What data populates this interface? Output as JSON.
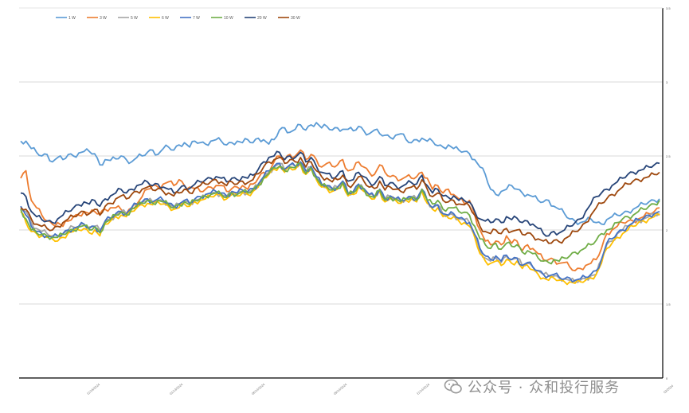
{
  "chart_data": {
    "type": "line",
    "title": "",
    "xlabel": "",
    "ylabel": "",
    "ylim": [
      0,
      5
    ],
    "yticks": [
      "0",
      "1.5",
      "2",
      "2.5",
      "3",
      "3.5"
    ],
    "xticks": [
      "11/16/2024",
      "01/13/2024",
      "06/14/2024",
      "09/14/2024",
      "11/14/2024",
      "02/2024"
    ],
    "grid": true,
    "legend": "top-left",
    "series": [
      {
        "name": "1 W",
        "color": "#5b9bd5",
        "values": [
          3.2,
          3.2,
          3.1,
          3.05,
          3.0,
          3.02,
          2.92,
          2.98,
          2.95,
          3.02,
          3.0,
          3.04,
          3.06,
          3.06,
          3.03,
          2.88,
          2.95,
          2.94,
          2.96,
          3.0,
          2.95,
          2.92,
          2.98,
          3.0,
          3.05,
          3.08,
          3.02,
          3.1,
          3.12,
          3.08,
          3.15,
          3.18,
          3.12,
          3.2,
          3.18,
          3.16,
          3.2,
          3.22,
          3.2,
          3.15,
          3.18,
          3.2,
          3.18,
          3.22,
          3.18,
          3.24,
          3.22,
          3.16,
          3.22,
          3.35,
          3.38,
          3.32,
          3.36,
          3.42,
          3.35,
          3.42,
          3.45,
          3.38,
          3.4,
          3.35,
          3.38,
          3.36,
          3.36,
          3.34,
          3.4,
          3.34,
          3.3,
          3.35,
          3.3,
          3.28,
          3.25,
          3.28,
          3.3,
          3.22,
          3.18,
          3.22,
          3.24,
          3.2,
          3.2,
          3.14,
          3.12,
          3.15,
          3.1,
          3.08,
          3.06,
          3.03,
          2.95,
          2.85,
          2.75,
          2.55,
          2.48,
          2.52,
          2.55,
          2.6,
          2.55,
          2.5,
          2.48,
          2.45,
          2.4,
          2.38,
          2.4,
          2.32,
          2.28,
          2.22,
          2.15,
          2.12,
          2.1,
          2.12,
          2.15,
          2.1,
          2.08,
          2.14,
          2.18,
          2.2,
          2.22,
          2.25,
          2.28,
          2.32,
          2.35,
          2.38,
          2.4,
          2.42
        ]
      },
      {
        "name": "3 W",
        "color": "#ed7d31",
        "values": [
          2.7,
          2.8,
          2.4,
          2.3,
          2.2,
          2.12,
          2.08,
          2.1,
          2.05,
          2.12,
          2.18,
          2.2,
          2.25,
          2.22,
          2.25,
          2.22,
          2.28,
          2.3,
          2.3,
          2.28,
          2.22,
          2.3,
          2.35,
          2.45,
          2.55,
          2.6,
          2.58,
          2.62,
          2.65,
          2.6,
          2.68,
          2.6,
          2.58,
          2.56,
          2.52,
          2.55,
          2.58,
          2.6,
          2.6,
          2.52,
          2.56,
          2.58,
          2.6,
          2.55,
          2.62,
          2.7,
          2.78,
          2.78,
          2.92,
          3.0,
          2.95,
          3.02,
          3.0,
          3.08,
          2.95,
          3.02,
          2.95,
          2.85,
          2.9,
          2.86,
          2.88,
          2.95,
          2.8,
          2.82,
          2.92,
          2.85,
          2.78,
          2.75,
          2.88,
          2.78,
          2.72,
          2.72,
          2.68,
          2.72,
          2.7,
          2.72,
          2.78,
          2.7,
          2.55,
          2.6,
          2.5,
          2.55,
          2.48,
          2.42,
          2.36,
          2.4,
          2.2,
          2.0,
          1.85,
          1.8,
          1.85,
          1.8,
          1.92,
          1.82,
          1.85,
          1.72,
          1.8,
          1.75,
          1.68,
          1.6,
          1.6,
          1.6,
          1.55,
          1.56,
          1.5,
          1.45,
          1.48,
          1.52,
          1.55,
          1.6,
          1.75,
          1.95,
          2.0,
          2.05,
          2.1,
          2.12,
          2.12,
          2.15,
          2.18,
          2.22,
          2.25,
          2.3
        ]
      },
      {
        "name": "5 W",
        "color": "#a5a5a5",
        "values": [
          2.3,
          2.25,
          2.1,
          2.02,
          1.98,
          1.95,
          1.92,
          1.92,
          1.95,
          2.0,
          2.04,
          2.05,
          2.08,
          2.04,
          2.05,
          2.0,
          2.1,
          2.15,
          2.2,
          2.25,
          2.22,
          2.3,
          2.35,
          2.38,
          2.4,
          2.38,
          2.4,
          2.38,
          2.36,
          2.3,
          2.35,
          2.38,
          2.36,
          2.4,
          2.42,
          2.45,
          2.48,
          2.5,
          2.48,
          2.45,
          2.5,
          2.48,
          2.52,
          2.5,
          2.55,
          2.6,
          2.7,
          2.78,
          2.85,
          2.9,
          2.82,
          2.88,
          2.86,
          2.92,
          2.78,
          2.85,
          2.7,
          2.62,
          2.6,
          2.55,
          2.58,
          2.65,
          2.5,
          2.52,
          2.6,
          2.55,
          2.48,
          2.45,
          2.55,
          2.42,
          2.45,
          2.42,
          2.4,
          2.42,
          2.44,
          2.42,
          2.55,
          2.4,
          2.3,
          2.34,
          2.2,
          2.2,
          2.2,
          2.15,
          2.14,
          2.1,
          1.92,
          1.72,
          1.62,
          1.58,
          1.62,
          1.56,
          1.65,
          1.6,
          1.62,
          1.52,
          1.55,
          1.5,
          1.45,
          1.4,
          1.38,
          1.38,
          1.35,
          1.34,
          1.32,
          1.3,
          1.32,
          1.34,
          1.38,
          1.4,
          1.6,
          1.8,
          1.85,
          1.95,
          2.0,
          2.05,
          2.1,
          2.12,
          2.15,
          2.18,
          2.2,
          2.22
        ]
      },
      {
        "name": "6 W",
        "color": "#ffc000",
        "values": [
          2.25,
          2.1,
          1.98,
          1.95,
          1.92,
          1.9,
          1.88,
          1.85,
          1.9,
          1.96,
          1.98,
          2.0,
          2.02,
          1.96,
          2.0,
          1.92,
          2.08,
          2.12,
          2.18,
          2.2,
          2.18,
          2.25,
          2.3,
          2.34,
          2.36,
          2.34,
          2.38,
          2.35,
          2.32,
          2.28,
          2.3,
          2.35,
          2.32,
          2.38,
          2.4,
          2.42,
          2.45,
          2.48,
          2.46,
          2.42,
          2.48,
          2.46,
          2.5,
          2.48,
          2.52,
          2.58,
          2.7,
          2.75,
          2.82,
          2.86,
          2.78,
          2.84,
          2.82,
          2.88,
          2.75,
          2.82,
          2.68,
          2.58,
          2.56,
          2.52,
          2.55,
          2.62,
          2.46,
          2.48,
          2.58,
          2.52,
          2.45,
          2.42,
          2.52,
          2.38,
          2.42,
          2.4,
          2.36,
          2.4,
          2.42,
          2.38,
          2.52,
          2.36,
          2.28,
          2.3,
          2.18,
          2.16,
          2.18,
          2.12,
          2.1,
          2.05,
          1.9,
          1.68,
          1.58,
          1.55,
          1.58,
          1.52,
          1.6,
          1.55,
          1.58,
          1.48,
          1.52,
          1.46,
          1.4,
          1.35,
          1.32,
          1.35,
          1.32,
          1.3,
          1.3,
          1.28,
          1.3,
          1.32,
          1.35,
          1.4,
          1.55,
          1.75,
          1.82,
          1.9,
          1.95,
          2.0,
          2.05,
          2.1,
          2.12,
          2.15,
          2.18,
          2.2
        ]
      },
      {
        "name": "7 W",
        "color": "#4472c4",
        "values": [
          2.32,
          2.2,
          2.05,
          1.98,
          1.95,
          1.92,
          1.9,
          1.92,
          1.95,
          2.0,
          2.02,
          2.05,
          2.08,
          2.02,
          2.05,
          1.98,
          2.12,
          2.16,
          2.22,
          2.25,
          2.22,
          2.3,
          2.35,
          2.38,
          2.42,
          2.38,
          2.42,
          2.4,
          2.36,
          2.32,
          2.35,
          2.4,
          2.36,
          2.42,
          2.45,
          2.48,
          2.5,
          2.52,
          2.5,
          2.46,
          2.52,
          2.5,
          2.54,
          2.52,
          2.56,
          2.62,
          2.72,
          2.8,
          2.86,
          2.9,
          2.82,
          2.88,
          2.86,
          2.92,
          2.8,
          2.86,
          2.72,
          2.62,
          2.6,
          2.56,
          2.58,
          2.66,
          2.5,
          2.52,
          2.62,
          2.56,
          2.48,
          2.45,
          2.55,
          2.42,
          2.46,
          2.42,
          2.4,
          2.42,
          2.45,
          2.42,
          2.55,
          2.4,
          2.3,
          2.34,
          2.22,
          2.2,
          2.22,
          2.16,
          2.14,
          2.1,
          1.94,
          1.75,
          1.65,
          1.6,
          1.65,
          1.58,
          1.66,
          1.6,
          1.62,
          1.52,
          1.56,
          1.5,
          1.45,
          1.4,
          1.38,
          1.4,
          1.36,
          1.34,
          1.35,
          1.32,
          1.34,
          1.36,
          1.4,
          1.45,
          1.6,
          1.82,
          1.88,
          1.96,
          2.0,
          2.05,
          2.1,
          2.14,
          2.16,
          2.2,
          2.22,
          2.25
        ]
      },
      {
        "name": "10 W",
        "color": "#70ad47",
        "values": [
          2.28,
          2.15,
          2.0,
          1.96,
          1.94,
          1.92,
          1.9,
          1.9,
          1.94,
          1.98,
          2.0,
          2.04,
          2.06,
          2.0,
          2.04,
          1.96,
          2.1,
          2.14,
          2.2,
          2.24,
          2.2,
          2.28,
          2.32,
          2.36,
          2.4,
          2.36,
          2.4,
          2.38,
          2.34,
          2.3,
          2.34,
          2.38,
          2.34,
          2.4,
          2.42,
          2.46,
          2.48,
          2.5,
          2.48,
          2.44,
          2.5,
          2.48,
          2.52,
          2.5,
          2.54,
          2.6,
          2.7,
          2.76,
          2.84,
          2.86,
          2.8,
          2.85,
          2.84,
          2.9,
          2.76,
          2.84,
          2.7,
          2.6,
          2.58,
          2.54,
          2.56,
          2.64,
          2.48,
          2.5,
          2.6,
          2.55,
          2.46,
          2.44,
          2.54,
          2.4,
          2.44,
          2.42,
          2.38,
          2.42,
          2.44,
          2.4,
          2.55,
          2.4,
          2.35,
          2.4,
          2.28,
          2.3,
          2.3,
          2.25,
          2.24,
          2.2,
          2.05,
          1.88,
          1.8,
          1.75,
          1.82,
          1.74,
          1.82,
          1.78,
          1.8,
          1.7,
          1.72,
          1.68,
          1.62,
          1.58,
          1.56,
          1.6,
          1.58,
          1.62,
          1.65,
          1.7,
          1.72,
          1.76,
          1.8,
          1.86,
          1.95,
          2.0,
          2.02,
          2.1,
          2.15,
          2.18,
          2.2,
          2.25,
          2.28,
          2.32,
          2.35,
          2.4
        ]
      },
      {
        "name": "20 W",
        "color": "#264478",
        "values": [
          2.5,
          2.45,
          2.25,
          2.18,
          2.14,
          2.12,
          2.1,
          2.15,
          2.2,
          2.25,
          2.3,
          2.34,
          2.38,
          2.35,
          2.4,
          2.32,
          2.42,
          2.46,
          2.5,
          2.55,
          2.5,
          2.55,
          2.6,
          2.62,
          2.65,
          2.6,
          2.62,
          2.58,
          2.55,
          2.5,
          2.55,
          2.6,
          2.56,
          2.62,
          2.65,
          2.68,
          2.7,
          2.72,
          2.7,
          2.65,
          2.7,
          2.68,
          2.72,
          2.7,
          2.74,
          2.82,
          2.92,
          2.98,
          3.0,
          3.05,
          2.95,
          3.0,
          2.98,
          3.05,
          2.92,
          2.98,
          2.86,
          2.78,
          2.76,
          2.7,
          2.74,
          2.8,
          2.66,
          2.68,
          2.78,
          2.72,
          2.65,
          2.62,
          2.72,
          2.6,
          2.64,
          2.6,
          2.58,
          2.62,
          2.64,
          2.62,
          2.74,
          2.6,
          2.5,
          2.55,
          2.46,
          2.44,
          2.46,
          2.4,
          2.4,
          2.38,
          2.25,
          2.15,
          2.12,
          2.1,
          2.15,
          2.1,
          2.18,
          2.14,
          2.16,
          2.1,
          2.12,
          2.08,
          2.02,
          1.95,
          1.92,
          1.98,
          1.96,
          2.0,
          2.05,
          2.1,
          2.15,
          2.25,
          2.35,
          2.45,
          2.5,
          2.55,
          2.6,
          2.65,
          2.7,
          2.75,
          2.78,
          2.8,
          2.82,
          2.85,
          2.88,
          2.9
        ]
      },
      {
        "name": "30 W",
        "color": "#9e480e",
        "values": [
          2.3,
          2.28,
          2.15,
          2.08,
          2.05,
          2.02,
          2.0,
          2.05,
          2.1,
          2.15,
          2.18,
          2.22,
          2.25,
          2.22,
          2.28,
          2.2,
          2.32,
          2.36,
          2.42,
          2.46,
          2.42,
          2.48,
          2.52,
          2.55,
          2.58,
          2.54,
          2.56,
          2.52,
          2.5,
          2.46,
          2.5,
          2.55,
          2.5,
          2.56,
          2.6,
          2.62,
          2.65,
          2.68,
          2.65,
          2.6,
          2.65,
          2.62,
          2.66,
          2.64,
          2.68,
          2.76,
          2.85,
          2.92,
          2.95,
          2.98,
          2.9,
          2.95,
          2.92,
          2.98,
          2.85,
          2.92,
          2.8,
          2.72,
          2.7,
          2.65,
          2.68,
          2.74,
          2.6,
          2.62,
          2.72,
          2.66,
          2.58,
          2.56,
          2.66,
          2.54,
          2.58,
          2.55,
          2.52,
          2.56,
          2.58,
          2.55,
          2.68,
          2.55,
          2.45,
          2.5,
          2.4,
          2.38,
          2.4,
          2.35,
          2.34,
          2.32,
          2.2,
          2.05,
          1.98,
          1.95,
          2.0,
          1.95,
          2.02,
          1.98,
          2.0,
          1.94,
          1.96,
          1.92,
          1.88,
          1.85,
          1.82,
          1.86,
          1.84,
          1.88,
          1.92,
          1.98,
          2.02,
          2.1,
          2.2,
          2.3,
          2.36,
          2.42,
          2.48,
          2.52,
          2.58,
          2.62,
          2.66,
          2.68,
          2.7,
          2.72,
          2.75,
          2.78
        ]
      }
    ]
  },
  "watermark": {
    "text": "公众号 · 众和投行服务"
  }
}
